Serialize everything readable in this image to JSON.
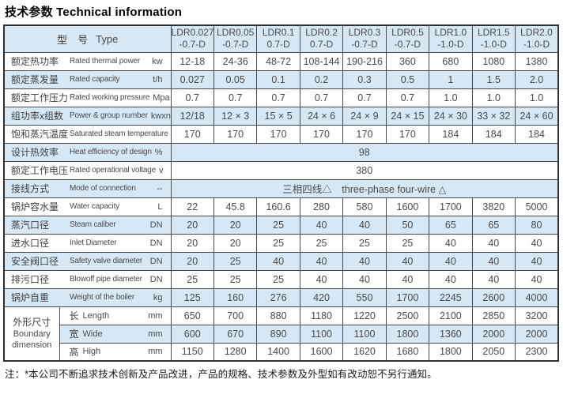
{
  "title": "技术参数 Technical information",
  "footer": "注：*本公司不断追求技术创新及产品改进，产品的规格、技术参数及外型如有改动恕不另行通知。",
  "colors": {
    "row_highlight": "#d6e8f6",
    "row_base": "#ffffff",
    "border": "#4a4a4a",
    "text": "#4a4a4a"
  },
  "table": {
    "type_label_zh": "型　号",
    "type_label_en": "Type",
    "models": [
      {
        "line1": "LDR0.027",
        "line2": "-0.7-D"
      },
      {
        "line1": "LDR0.05",
        "line2": "-0.7-D"
      },
      {
        "line1": "LDR0.1",
        "line2": "0.7-D"
      },
      {
        "line1": "LDR0.2",
        "line2": "0.7-D"
      },
      {
        "line1": "LDR0.3",
        "line2": "-0.7-D"
      },
      {
        "line1": "LDR0.5",
        "line2": "-0.7-D"
      },
      {
        "line1": "LDR1.0",
        "line2": "-1.0-D"
      },
      {
        "line1": "LDR1.5",
        "line2": "-1.0-D"
      },
      {
        "line1": "LDR2.0",
        "line2": "-1.0-D"
      }
    ],
    "rows": [
      {
        "zh": "额定热功率",
        "en": "Rated thermal power",
        "unit": "kw",
        "values": [
          "12-18",
          "24-36",
          "48-72",
          "108-144",
          "190-216",
          "360",
          "680",
          "1080",
          "1380"
        ]
      },
      {
        "zh": "额定蒸发量",
        "en": "Rated capacity",
        "unit": "t/h",
        "values": [
          "0.027",
          "0.05",
          "0.1",
          "0.2",
          "0.3",
          "0.5",
          "1",
          "1.5",
          "2.0"
        ]
      },
      {
        "zh": "额定工作压力",
        "en": "Rated working pressure",
        "unit": "Mpa",
        "values": [
          "0.7",
          "0.7",
          "0.7",
          "0.7",
          "0.7",
          "0.7",
          "1.0",
          "1.0",
          "1.0"
        ]
      },
      {
        "zh": "组功率x组数",
        "en": "Power & group number",
        "unit": "kwxn",
        "values": [
          "12/18",
          "12 × 3",
          "15 × 5",
          "24 × 6",
          "24 × 9",
          "24 × 15",
          "24 × 30",
          "33 × 32",
          "24 × 60"
        ]
      },
      {
        "zh": "饱和蒸汽温度",
        "en": "Saturated steam temperature",
        "unit": "℃",
        "values": [
          "170",
          "170",
          "170",
          "170",
          "170",
          "170",
          "184",
          "184",
          "184"
        ]
      },
      {
        "zh": "设计热效率",
        "en": "Heat efficiency of design",
        "unit": "%",
        "span": "98"
      },
      {
        "zh": "额定工作电压",
        "en": "Rated operational voltage",
        "unit": "v",
        "span": "380"
      },
      {
        "zh": "接线方式",
        "en": "Mode of connection",
        "unit": "--",
        "span": "三相四线△　three-phase four-wire △"
      },
      {
        "zh": "锅炉容水量",
        "en": "Water capacity",
        "unit": "L",
        "values": [
          "22",
          "45.8",
          "160.6",
          "280",
          "580",
          "1600",
          "1700",
          "3820",
          "5000"
        ]
      },
      {
        "zh": "蒸汽口径",
        "en": "Steam caliber",
        "unit": "DN",
        "values": [
          "20",
          "20",
          "25",
          "40",
          "40",
          "50",
          "65",
          "65",
          "80"
        ]
      },
      {
        "zh": "进水口径",
        "en": "Inlet Diameter",
        "unit": "DN",
        "values": [
          "20",
          "20",
          "25",
          "25",
          "25",
          "25",
          "40",
          "40",
          "40"
        ]
      },
      {
        "zh": "安全阀口径",
        "en": "Safety valve diameter",
        "unit": "DN",
        "values": [
          "20",
          "25",
          "40",
          "40",
          "40",
          "40",
          "40",
          "40",
          "40"
        ]
      },
      {
        "zh": "排污口径",
        "en": "Blowoff pipe diameter",
        "unit": "DN",
        "values": [
          "25",
          "25",
          "25",
          "40",
          "40",
          "40",
          "40",
          "40",
          "40"
        ]
      },
      {
        "zh": "锅炉自重",
        "en": "Weight of the boiler",
        "unit": "kg",
        "values": [
          "125",
          "160",
          "276",
          "420",
          "550",
          "1700",
          "2245",
          "2600",
          "4000"
        ]
      }
    ],
    "dimension_group": {
      "zh": "外形尺寸",
      "en_line1": "Boundary",
      "en_line2": "dimension",
      "rows": [
        {
          "zh": "长",
          "en": "Length",
          "unit": "mm",
          "values": [
            "650",
            "700",
            "880",
            "1180",
            "1220",
            "2500",
            "2100",
            "2850",
            "3200"
          ]
        },
        {
          "zh": "宽",
          "en": "Wide",
          "unit": "mm",
          "values": [
            "600",
            "670",
            "890",
            "1100",
            "1100",
            "1800",
            "1360",
            "2000",
            "2000"
          ]
        },
        {
          "zh": "高",
          "en": "High",
          "unit": "mm",
          "values": [
            "1150",
            "1280",
            "1400",
            "1600",
            "1620",
            "1680",
            "1800",
            "2050",
            "2300"
          ]
        }
      ]
    }
  }
}
